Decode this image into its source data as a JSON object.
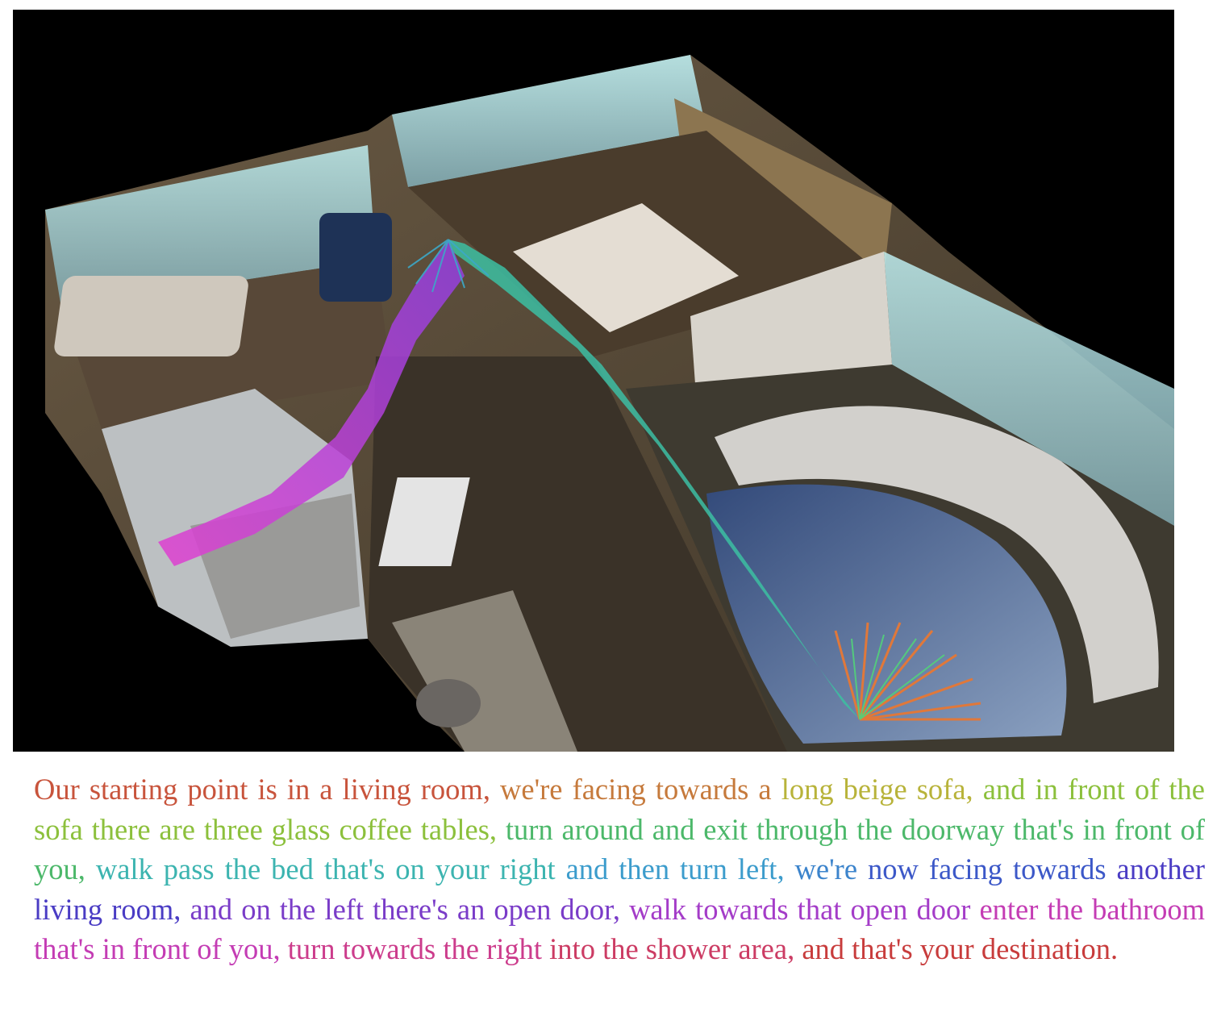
{
  "instruction": {
    "segments": [
      {
        "text": "Our starting point is in a living room, ",
        "color": "#c8543c"
      },
      {
        "text": "we're facing towards a ",
        "color": "#c67a3c"
      },
      {
        "text": "long beige sofa, ",
        "color": "#b8b33a"
      },
      {
        "text": "and in front of the sofa there are three glass coffee tables, ",
        "color": "#8cc03c"
      },
      {
        "text": "turn around and exit through the doorway that's in front of you, ",
        "color": "#4cb86a"
      },
      {
        "text": "walk pass the bed that's on your right ",
        "color": "#3cb4b0"
      },
      {
        "text": "and then turn left, ",
        "color": "#3c9ccc"
      },
      {
        "text": "we're ",
        "color": "#3c84cc"
      },
      {
        "text": "now facing towards ",
        "color": "#3c58c8"
      },
      {
        "text": "another living room, ",
        "color": "#4a3cc4"
      },
      {
        "text": "and on the left there's an open door, ",
        "color": "#7a3cc8"
      },
      {
        "text": "walk towards that open door ",
        "color": "#a43cc8"
      },
      {
        "text": "enter the bathroom that's in front of you, ",
        "color": "#c43cb4"
      },
      {
        "text": "turn towards the right ",
        "color": "#cc3c8c"
      },
      {
        "text": "into the shower area, ",
        "color": "#cc3c64"
      },
      {
        "text": "and that's your destination.",
        "color": "#c83c3c"
      }
    ]
  },
  "scene": {
    "background": "#000000",
    "path_colors": {
      "start": "#e0783a",
      "mid_green": "#52d27a",
      "teal": "#3cb8c8",
      "purple": "#a040e0",
      "magenta": "#e040d0"
    }
  }
}
